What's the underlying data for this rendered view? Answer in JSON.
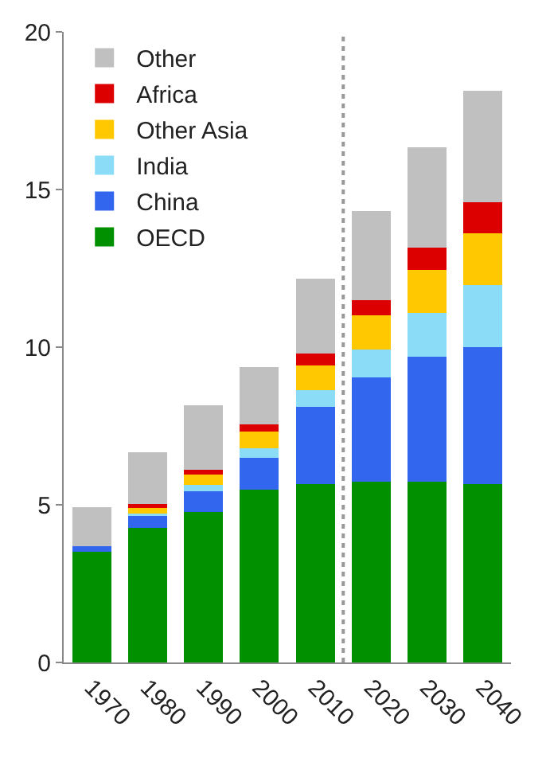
{
  "chart_data": {
    "type": "bar",
    "stacked": true,
    "categories": [
      "1970",
      "1980",
      "1990",
      "2000",
      "2010",
      "2020",
      "2030",
      "2040"
    ],
    "series": [
      {
        "name": "OECD",
        "color": "#009000",
        "values": [
          3.5,
          4.27,
          4.78,
          5.49,
          5.66,
          5.72,
          5.72,
          5.66
        ]
      },
      {
        "name": "China",
        "color": "#3366ee",
        "values": [
          0.18,
          0.38,
          0.64,
          0.99,
          2.45,
          3.32,
          3.98,
          4.34
        ]
      },
      {
        "name": "India",
        "color": "#8adcf7",
        "values": [
          0,
          0.08,
          0.21,
          0.32,
          0.53,
          0.89,
          1.38,
          1.97
        ]
      },
      {
        "name": "Other Asia",
        "color": "#ffc800",
        "values": [
          0,
          0.2,
          0.32,
          0.53,
          0.79,
          1.08,
          1.36,
          1.65
        ]
      },
      {
        "name": "Africa",
        "color": "#dd0000",
        "values": [
          0,
          0.1,
          0.17,
          0.23,
          0.36,
          0.49,
          0.71,
          0.97
        ]
      },
      {
        "name": "Other",
        "color": "#c0c0c0",
        "values": [
          1.24,
          1.64,
          2.04,
          1.82,
          2.39,
          2.82,
          3.2,
          3.53
        ]
      }
    ],
    "ylim": [
      0,
      20
    ],
    "yticks": [
      0,
      5,
      10,
      15,
      20
    ],
    "legend": "top left"
  }
}
